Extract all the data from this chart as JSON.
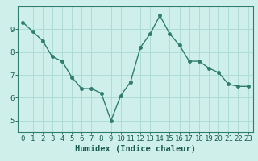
{
  "x": [
    0,
    1,
    2,
    3,
    4,
    5,
    6,
    7,
    8,
    9,
    10,
    11,
    12,
    13,
    14,
    15,
    16,
    17,
    18,
    19,
    20,
    21,
    22,
    23
  ],
  "y": [
    9.3,
    8.9,
    8.5,
    7.8,
    7.6,
    6.9,
    6.4,
    6.4,
    6.2,
    5.0,
    6.1,
    6.7,
    8.2,
    8.8,
    9.6,
    8.8,
    8.3,
    7.6,
    7.6,
    7.3,
    7.1,
    6.6,
    6.5,
    6.5
  ],
  "line_color": "#2e7d6e",
  "marker": "o",
  "markersize": 2.5,
  "linewidth": 1.0,
  "bg_color": "#cff0ea",
  "grid_color": "#aeddd6",
  "xlabel": "Humidex (Indice chaleur)",
  "xlabel_color": "#1a5c50",
  "tick_color": "#1a5c50",
  "ylim": [
    4.5,
    10.0
  ],
  "xlim": [
    -0.5,
    23.5
  ],
  "yticks": [
    5,
    6,
    7,
    8,
    9
  ],
  "xticks": [
    0,
    1,
    2,
    3,
    4,
    5,
    6,
    7,
    8,
    9,
    10,
    11,
    12,
    13,
    14,
    15,
    16,
    17,
    18,
    19,
    20,
    21,
    22,
    23
  ],
  "spine_color": "#2e7d6e",
  "xlabel_fontsize": 7.5,
  "tick_fontsize": 6.5
}
